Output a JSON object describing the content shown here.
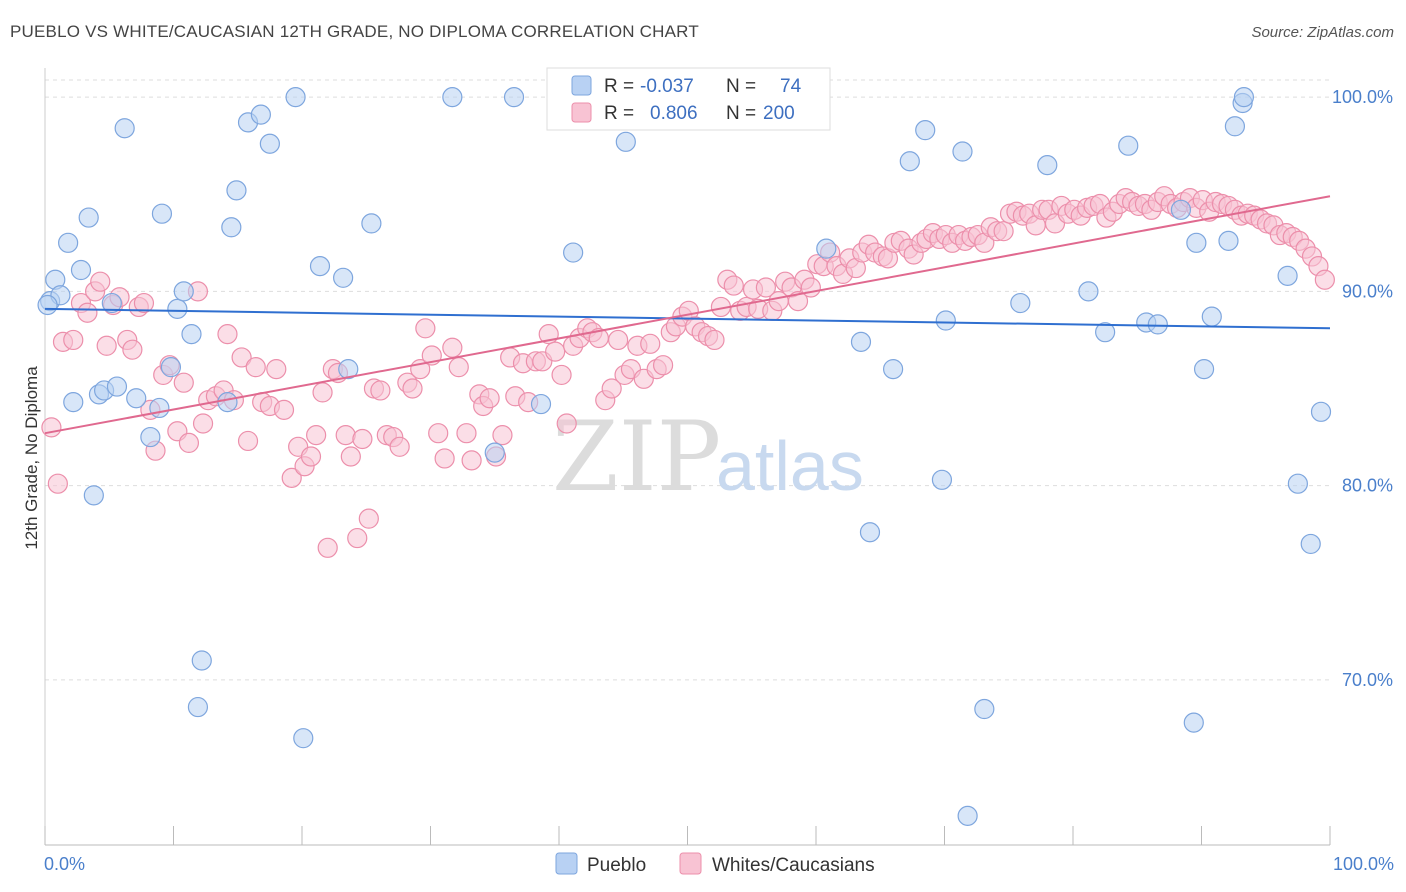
{
  "header": {
    "title": "PUEBLO VS WHITE/CAUCASIAN 12TH GRADE, NO DIPLOMA CORRELATION CHART",
    "source": "Source: ZipAtlas.com"
  },
  "watermark": {
    "zip": "ZIP",
    "atlas": "atlas"
  },
  "legend": {
    "row1": {
      "r_label": "R =",
      "r_value": "-0.037",
      "n_label": "N =",
      "n_value": "74"
    },
    "row2": {
      "r_label": "R =",
      "r_value": "0.806",
      "n_label": "N =",
      "n_value": "200"
    }
  },
  "bottom_legend": {
    "pueblo": "Pueblo",
    "whites": "Whites/Caucasians"
  },
  "colors": {
    "pueblo_fill": "#b8d1f3",
    "pueblo_stroke": "#7ea6de",
    "pueblo_line": "#2f6fd0",
    "whites_fill": "#f8c3d3",
    "whites_stroke": "#ec8fab",
    "whites_line": "#e0698f",
    "tick_text": "#4a7fcb",
    "grid": "#dddddd"
  },
  "chart_data": {
    "type": "scatter",
    "title": "PUEBLO VS WHITE/CAUCASIAN 12TH GRADE, NO DIPLOMA CORRELATION CHART",
    "xlabel": "",
    "ylabel": "12th Grade, No Diploma",
    "xlim": [
      0,
      100
    ],
    "ylim": [
      61.5,
      101.5
    ],
    "x_tick_labels": [
      "0.0%",
      "100.0%"
    ],
    "y_ticks": [
      70,
      80,
      90,
      100
    ],
    "y_tick_labels": [
      "70.0%",
      "80.0%",
      "90.0%",
      "100.0%"
    ],
    "grid": true,
    "legend_position": "top-center",
    "series": [
      {
        "name": "Pueblo",
        "r": -0.037,
        "n": 74,
        "trend": {
          "x": [
            0,
            100
          ],
          "y": [
            89.1,
            88.1
          ]
        },
        "points": [
          [
            0.4,
            89.5
          ],
          [
            0.8,
            90.6
          ],
          [
            1.2,
            89.8
          ],
          [
            1.8,
            92.5
          ],
          [
            2.2,
            84.3
          ],
          [
            2.8,
            91.1
          ],
          [
            3.4,
            93.8
          ],
          [
            3.8,
            79.5
          ],
          [
            4.2,
            84.7
          ],
          [
            4.6,
            84.9
          ],
          [
            5.2,
            89.4
          ],
          [
            5.6,
            85.1
          ],
          [
            6.2,
            98.4
          ],
          [
            7.1,
            84.5
          ],
          [
            8.2,
            82.5
          ],
          [
            8.9,
            84.0
          ],
          [
            9.1,
            94.0
          ],
          [
            9.8,
            86.1
          ],
          [
            10.3,
            89.1
          ],
          [
            10.8,
            90.0
          ],
          [
            11.4,
            87.8
          ],
          [
            12.2,
            71.0
          ],
          [
            11.9,
            68.6
          ],
          [
            14.2,
            84.3
          ],
          [
            14.5,
            93.3
          ],
          [
            14.9,
            95.2
          ],
          [
            15.8,
            98.7
          ],
          [
            16.8,
            99.1
          ],
          [
            17.5,
            97.6
          ],
          [
            19.5,
            100.0
          ],
          [
            20.1,
            67.0
          ],
          [
            21.4,
            91.3
          ],
          [
            23.2,
            90.7
          ],
          [
            23.6,
            86.0
          ],
          [
            25.4,
            93.5
          ],
          [
            31.7,
            100.0
          ],
          [
            35.0,
            81.7
          ],
          [
            36.5,
            100.0
          ],
          [
            38.6,
            84.2
          ],
          [
            41.1,
            92.0
          ],
          [
            45.2,
            97.7
          ],
          [
            46.3,
            100.0
          ],
          [
            60.8,
            92.2
          ],
          [
            63.5,
            87.4
          ],
          [
            64.2,
            77.6
          ],
          [
            66.0,
            86.0
          ],
          [
            67.3,
            96.7
          ],
          [
            68.5,
            98.3
          ],
          [
            69.8,
            80.3
          ],
          [
            70.1,
            88.5
          ],
          [
            71.4,
            97.2
          ],
          [
            73.1,
            68.5
          ],
          [
            75.9,
            89.4
          ],
          [
            78.0,
            96.5
          ],
          [
            81.2,
            90.0
          ],
          [
            82.5,
            87.9
          ],
          [
            84.3,
            97.5
          ],
          [
            85.7,
            88.4
          ],
          [
            86.6,
            88.3
          ],
          [
            88.4,
            94.2
          ],
          [
            89.4,
            67.8
          ],
          [
            89.6,
            92.5
          ],
          [
            90.2,
            86.0
          ],
          [
            90.8,
            88.7
          ],
          [
            92.1,
            92.6
          ],
          [
            92.6,
            98.5
          ],
          [
            93.2,
            99.7
          ],
          [
            96.7,
            90.8
          ],
          [
            97.5,
            80.1
          ],
          [
            98.5,
            77.0
          ],
          [
            99.3,
            83.8
          ],
          [
            71.8,
            63.0
          ],
          [
            93.3,
            100.0
          ],
          [
            0.2,
            89.3
          ]
        ]
      },
      {
        "name": "Whites/Caucasians",
        "r": 0.806,
        "n": 200,
        "trend": {
          "x": [
            0,
            100
          ],
          "y": [
            82.7,
            94.9
          ]
        },
        "points": [
          [
            0.5,
            83.0
          ],
          [
            1.0,
            80.1
          ],
          [
            1.4,
            87.4
          ],
          [
            2.2,
            87.5
          ],
          [
            2.8,
            89.4
          ],
          [
            3.3,
            88.9
          ],
          [
            3.9,
            90.0
          ],
          [
            4.3,
            90.5
          ],
          [
            4.8,
            87.2
          ],
          [
            5.3,
            89.3
          ],
          [
            5.8,
            89.7
          ],
          [
            6.4,
            87.5
          ],
          [
            6.8,
            87.0
          ],
          [
            7.3,
            89.2
          ],
          [
            7.7,
            89.4
          ],
          [
            8.2,
            83.9
          ],
          [
            8.6,
            81.8
          ],
          [
            9.2,
            85.7
          ],
          [
            9.7,
            86.2
          ],
          [
            10.3,
            82.8
          ],
          [
            10.8,
            85.3
          ],
          [
            11.2,
            82.2
          ],
          [
            11.9,
            90.0
          ],
          [
            12.3,
            83.2
          ],
          [
            12.7,
            84.4
          ],
          [
            13.3,
            84.6
          ],
          [
            13.9,
            84.9
          ],
          [
            14.2,
            87.8
          ],
          [
            14.7,
            84.4
          ],
          [
            15.3,
            86.6
          ],
          [
            15.8,
            82.3
          ],
          [
            16.4,
            86.1
          ],
          [
            16.9,
            84.3
          ],
          [
            17.5,
            84.1
          ],
          [
            18.0,
            86.0
          ],
          [
            18.6,
            83.9
          ],
          [
            19.2,
            80.4
          ],
          [
            19.7,
            82.0
          ],
          [
            20.2,
            81.0
          ],
          [
            20.7,
            81.5
          ],
          [
            21.1,
            82.6
          ],
          [
            21.6,
            84.8
          ],
          [
            22.0,
            76.8
          ],
          [
            22.4,
            86.0
          ],
          [
            22.8,
            85.8
          ],
          [
            23.4,
            82.6
          ],
          [
            23.8,
            81.5
          ],
          [
            24.3,
            77.3
          ],
          [
            24.7,
            82.4
          ],
          [
            25.2,
            78.3
          ],
          [
            25.6,
            85.0
          ],
          [
            26.1,
            84.9
          ],
          [
            26.6,
            82.6
          ],
          [
            27.1,
            82.5
          ],
          [
            27.6,
            82.0
          ],
          [
            28.2,
            85.3
          ],
          [
            28.6,
            85.0
          ],
          [
            29.2,
            86.0
          ],
          [
            29.6,
            88.1
          ],
          [
            30.1,
            86.7
          ],
          [
            30.6,
            82.7
          ],
          [
            31.1,
            81.4
          ],
          [
            31.7,
            87.1
          ],
          [
            32.2,
            86.1
          ],
          [
            32.8,
            82.7
          ],
          [
            33.2,
            81.3
          ],
          [
            33.8,
            84.7
          ],
          [
            34.1,
            84.1
          ],
          [
            34.6,
            84.5
          ],
          [
            35.1,
            81.5
          ],
          [
            35.6,
            82.6
          ],
          [
            36.2,
            86.6
          ],
          [
            36.6,
            84.6
          ],
          [
            37.2,
            86.3
          ],
          [
            37.6,
            84.3
          ],
          [
            38.2,
            86.4
          ],
          [
            38.7,
            86.4
          ],
          [
            39.2,
            87.8
          ],
          [
            39.7,
            86.9
          ],
          [
            40.2,
            85.7
          ],
          [
            40.6,
            83.2
          ],
          [
            41.1,
            87.2
          ],
          [
            41.6,
            87.6
          ],
          [
            42.2,
            88.1
          ],
          [
            42.6,
            87.9
          ],
          [
            43.1,
            87.6
          ],
          [
            43.6,
            84.4
          ],
          [
            44.1,
            85.0
          ],
          [
            44.6,
            87.5
          ],
          [
            45.1,
            85.7
          ],
          [
            45.6,
            86.0
          ],
          [
            46.1,
            87.2
          ],
          [
            46.6,
            85.5
          ],
          [
            47.1,
            87.3
          ],
          [
            47.6,
            86.0
          ],
          [
            48.1,
            86.2
          ],
          [
            48.7,
            87.9
          ],
          [
            49.1,
            88.2
          ],
          [
            49.6,
            88.7
          ],
          [
            50.1,
            89.0
          ],
          [
            50.6,
            88.2
          ],
          [
            51.1,
            87.9
          ],
          [
            51.6,
            87.7
          ],
          [
            52.1,
            87.5
          ],
          [
            52.6,
            89.2
          ],
          [
            53.1,
            90.6
          ],
          [
            53.6,
            90.3
          ],
          [
            54.1,
            89.0
          ],
          [
            54.6,
            89.2
          ],
          [
            55.1,
            90.1
          ],
          [
            55.5,
            89.1
          ],
          [
            56.1,
            90.2
          ],
          [
            56.6,
            89.0
          ],
          [
            57.1,
            89.5
          ],
          [
            57.6,
            90.5
          ],
          [
            58.1,
            90.2
          ],
          [
            58.6,
            89.5
          ],
          [
            59.1,
            90.6
          ],
          [
            59.6,
            90.2
          ],
          [
            60.1,
            91.4
          ],
          [
            60.6,
            91.3
          ],
          [
            61.1,
            92.0
          ],
          [
            61.6,
            91.3
          ],
          [
            62.1,
            90.9
          ],
          [
            62.6,
            91.7
          ],
          [
            63.1,
            91.2
          ],
          [
            63.6,
            92.0
          ],
          [
            64.1,
            92.4
          ],
          [
            64.6,
            92.0
          ],
          [
            65.2,
            91.8
          ],
          [
            65.6,
            91.7
          ],
          [
            66.1,
            92.5
          ],
          [
            66.6,
            92.6
          ],
          [
            67.2,
            92.2
          ],
          [
            67.6,
            91.9
          ],
          [
            68.2,
            92.5
          ],
          [
            68.6,
            92.7
          ],
          [
            69.1,
            93.0
          ],
          [
            69.6,
            92.7
          ],
          [
            70.1,
            92.9
          ],
          [
            70.6,
            92.5
          ],
          [
            71.1,
            92.9
          ],
          [
            71.6,
            92.6
          ],
          [
            72.1,
            92.8
          ],
          [
            72.6,
            92.9
          ],
          [
            73.1,
            92.5
          ],
          [
            73.6,
            93.3
          ],
          [
            74.1,
            93.1
          ],
          [
            74.6,
            93.1
          ],
          [
            75.1,
            94.0
          ],
          [
            75.6,
            94.1
          ],
          [
            76.1,
            93.9
          ],
          [
            76.6,
            94.0
          ],
          [
            77.1,
            93.4
          ],
          [
            77.6,
            94.2
          ],
          [
            78.1,
            94.2
          ],
          [
            78.6,
            93.5
          ],
          [
            79.1,
            94.4
          ],
          [
            79.6,
            94.0
          ],
          [
            80.1,
            94.2
          ],
          [
            80.6,
            93.9
          ],
          [
            81.1,
            94.3
          ],
          [
            81.6,
            94.4
          ],
          [
            82.1,
            94.5
          ],
          [
            82.6,
            93.8
          ],
          [
            83.1,
            94.1
          ],
          [
            83.6,
            94.5
          ],
          [
            84.1,
            94.8
          ],
          [
            84.6,
            94.6
          ],
          [
            85.1,
            94.4
          ],
          [
            85.6,
            94.5
          ],
          [
            86.1,
            94.2
          ],
          [
            86.6,
            94.6
          ],
          [
            87.1,
            94.9
          ],
          [
            87.6,
            94.5
          ],
          [
            88.1,
            94.3
          ],
          [
            88.6,
            94.6
          ],
          [
            89.1,
            94.8
          ],
          [
            89.6,
            94.3
          ],
          [
            90.1,
            94.7
          ],
          [
            90.6,
            94.1
          ],
          [
            91.1,
            94.6
          ],
          [
            91.6,
            94.5
          ],
          [
            92.1,
            94.4
          ],
          [
            92.6,
            94.2
          ],
          [
            93.1,
            93.9
          ],
          [
            93.6,
            94.0
          ],
          [
            94.1,
            93.9
          ],
          [
            94.6,
            93.7
          ],
          [
            95.1,
            93.5
          ],
          [
            95.6,
            93.4
          ],
          [
            96.1,
            92.9
          ],
          [
            96.6,
            93.0
          ],
          [
            97.1,
            92.8
          ],
          [
            97.6,
            92.6
          ],
          [
            98.1,
            92.2
          ],
          [
            98.6,
            91.8
          ],
          [
            99.1,
            91.3
          ],
          [
            99.6,
            90.6
          ]
        ]
      }
    ]
  }
}
